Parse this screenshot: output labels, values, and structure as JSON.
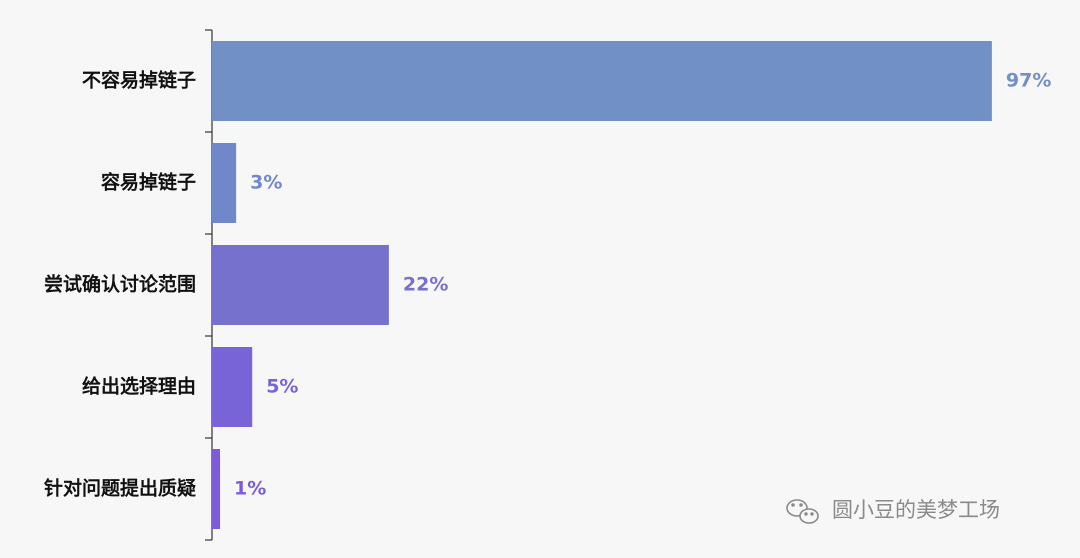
{
  "chart_data": {
    "type": "bar",
    "orientation": "horizontal",
    "categories": [
      "不容易掉链子",
      "容易掉链子",
      "尝试确认讨论范围",
      "给出选择理由",
      "针对问题提出质疑"
    ],
    "values": [
      97,
      3,
      22,
      5,
      1
    ],
    "value_labels": [
      "97%",
      "3%",
      "22%",
      "5%",
      "1%"
    ],
    "colors": [
      "#7190c6",
      "#7087c9",
      "#7671cd",
      "#7964d7",
      "#7c5cdb"
    ],
    "watermark": "圆小豆的美梦工场"
  }
}
